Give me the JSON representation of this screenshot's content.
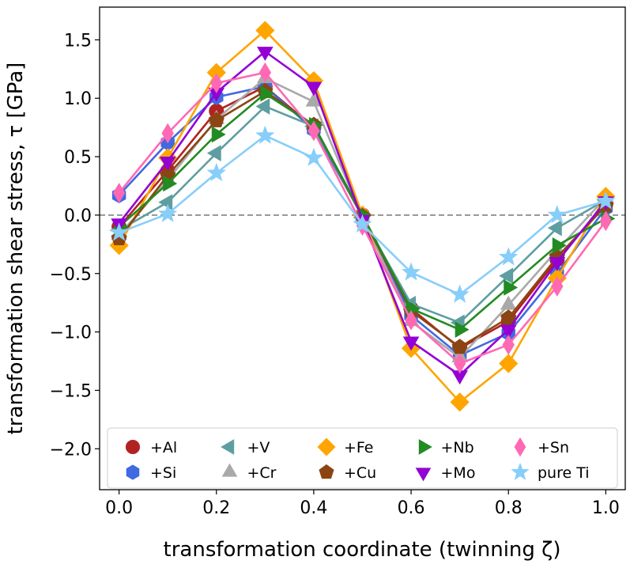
{
  "chart_data": {
    "type": "line",
    "xlabel": "transformation coordinate (twinning ζ)",
    "ylabel": "transformation shear stress, τ [GPa]",
    "xlim": [
      -0.04,
      1.04
    ],
    "ylim": [
      -2.35,
      1.78
    ],
    "xticks": [
      0.0,
      0.2,
      0.4,
      0.6,
      0.8,
      1.0
    ],
    "xtick_labels": [
      "0.0",
      "0.2",
      "0.4",
      "0.6",
      "0.8",
      "1.0"
    ],
    "yticks": [
      -2.0,
      -1.5,
      -1.0,
      -0.5,
      0.0,
      0.5,
      1.0,
      1.5
    ],
    "ytick_labels": [
      "−2.0",
      "−1.5",
      "−1.0",
      "−0.5",
      "0.0",
      "0.5",
      "1.0",
      "1.5"
    ],
    "reference_line": {
      "y": 0.0,
      "style": "dashed",
      "color": "#808080"
    },
    "legend_position": "lower-center",
    "x": [
      0.0,
      0.1,
      0.2,
      0.3,
      0.4,
      0.5,
      0.6,
      0.7,
      0.8,
      0.9,
      1.0
    ],
    "series": [
      {
        "name": "+Al",
        "color": "#b22222",
        "marker": "circle",
        "values": [
          -0.1,
          0.38,
          0.89,
          1.1,
          0.75,
          0.0,
          -0.8,
          -1.14,
          -0.91,
          -0.38,
          0.1
        ]
      },
      {
        "name": "+Si",
        "color": "#4169e1",
        "marker": "hexagon",
        "values": [
          0.17,
          0.62,
          1.01,
          1.1,
          0.73,
          -0.01,
          -0.86,
          -1.2,
          -1.01,
          -0.5,
          0.06
        ]
      },
      {
        "name": "+V",
        "color": "#5f9ea0",
        "marker": "triangle-left",
        "values": [
          -0.13,
          0.11,
          0.53,
          0.93,
          0.76,
          -0.02,
          -0.76,
          -0.92,
          -0.52,
          -0.11,
          0.13
        ]
      },
      {
        "name": "+Cr",
        "color": "#a9a9a9",
        "marker": "triangle-up",
        "values": [
          -0.17,
          0.3,
          0.82,
          1.17,
          0.97,
          -0.02,
          -0.91,
          -1.22,
          -0.77,
          -0.3,
          0.15
        ]
      },
      {
        "name": "+Fe",
        "color": "#ffa500",
        "marker": "diamond",
        "values": [
          -0.26,
          0.49,
          1.22,
          1.58,
          1.15,
          0.0,
          -1.14,
          -1.6,
          -1.27,
          -0.54,
          0.16
        ]
      },
      {
        "name": "+Cu",
        "color": "#8b4513",
        "marker": "pentagon",
        "values": [
          -0.2,
          0.34,
          0.81,
          1.06,
          0.77,
          -0.01,
          -0.82,
          -1.13,
          -0.88,
          -0.36,
          0.08
        ]
      },
      {
        "name": "+Nb",
        "color": "#228b22",
        "marker": "triangle-right",
        "values": [
          -0.1,
          0.27,
          0.69,
          1.04,
          0.77,
          0.0,
          -0.8,
          -0.98,
          -0.62,
          -0.26,
          -0.03
        ]
      },
      {
        "name": "+Mo",
        "color": "#9400d3",
        "marker": "triangle-down",
        "values": [
          -0.07,
          0.46,
          1.05,
          1.4,
          1.1,
          -0.04,
          -1.08,
          -1.37,
          -0.98,
          -0.4,
          0.12
        ]
      },
      {
        "name": "+Sn",
        "color": "#ff69b4",
        "marker": "thin-diamond",
        "values": [
          0.19,
          0.7,
          1.13,
          1.22,
          0.72,
          -0.09,
          -0.9,
          -1.27,
          -1.11,
          -0.61,
          -0.05
        ]
      },
      {
        "name": "pure Ti",
        "color": "#87cefa",
        "marker": "star",
        "values": [
          -0.15,
          0.01,
          0.36,
          0.68,
          0.49,
          -0.08,
          -0.49,
          -0.68,
          -0.36,
          0.0,
          0.12
        ]
      }
    ]
  }
}
